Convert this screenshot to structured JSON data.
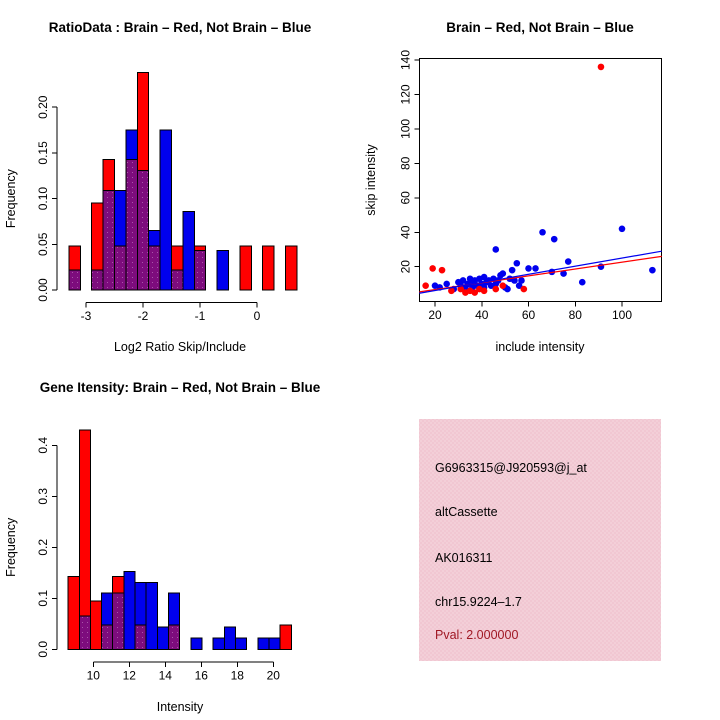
{
  "colors": {
    "red": "#FF0000",
    "blue": "#0000EE",
    "overlap_purple": "#7D0C7D",
    "overlap_dot": "#A855A8",
    "pval_dark_red": "#A01824",
    "info_panel_pink": "#F1C7D2",
    "axis_black": "#000000",
    "background": "#FFFFFF"
  },
  "chart_data": [
    {
      "type": "histogram-overlay",
      "title": "RatioData : Brain – Red, Not Brain – Blue",
      "xlabel": "Log2 Ratio Skip/Include",
      "ylabel": "Frequency",
      "series": {
        "red": "Brain",
        "blue": "Not Brain"
      },
      "x_ticks": [
        -3,
        -2,
        -1,
        0
      ],
      "y_ticks": [
        0,
        0.05,
        0.1,
        0.15,
        0.2
      ],
      "y_tick_labels": [
        "0.00",
        "0.05",
        "0.10",
        "0.15",
        "0.20"
      ],
      "xlim": [
        -3.5,
        0.8
      ],
      "ylim": [
        0,
        0.245
      ],
      "grid": false,
      "bin_width": 0.2,
      "bins": [
        {
          "x0": -3.3,
          "red": 0.048,
          "blue": 0.022
        },
        {
          "x0": -2.9,
          "red": 0.095,
          "blue": 0.022
        },
        {
          "x0": -2.7,
          "red": 0.143,
          "blue": 0.109
        },
        {
          "x0": -2.5,
          "red": 0.048,
          "blue": 0.109
        },
        {
          "x0": -2.3,
          "red": 0.143,
          "blue": 0.175
        },
        {
          "x0": -2.1,
          "red": 0.238,
          "blue": 0.131
        },
        {
          "x0": -1.9,
          "red": 0.048,
          "blue": 0.065
        },
        {
          "x0": -1.7,
          "red": 0.0,
          "blue": 0.175
        },
        {
          "x0": -1.5,
          "red": 0.048,
          "blue": 0.022
        },
        {
          "x0": -1.3,
          "red": 0.0,
          "blue": 0.086
        },
        {
          "x0": -1.1,
          "red": 0.048,
          "blue": 0.043
        },
        {
          "x0": -0.7,
          "red": 0.0,
          "blue": 0.043
        },
        {
          "x0": -0.3,
          "red": 0.048,
          "blue": 0.0
        },
        {
          "x0": 0.1,
          "red": 0.048,
          "blue": 0.0
        },
        {
          "x0": 0.5,
          "red": 0.048,
          "blue": 0.0
        }
      ]
    },
    {
      "type": "scatter",
      "title": "Brain – Red, Not Brain – Blue",
      "xlabel": "include intensity",
      "ylabel": "skip intensity",
      "series": {
        "red": "Brain",
        "blue": "Not Brain"
      },
      "x_ticks": [
        20,
        40,
        60,
        80,
        100
      ],
      "y_ticks": [
        20,
        40,
        60,
        80,
        100,
        120,
        140
      ],
      "xlim": [
        13.3,
        117
      ],
      "ylim": [
        -0.1,
        141
      ],
      "grid": false,
      "red_points": [
        [
          16,
          9
        ],
        [
          19,
          19
        ],
        [
          23,
          18
        ],
        [
          27,
          6
        ],
        [
          31,
          7
        ],
        [
          33,
          5
        ],
        [
          35,
          6
        ],
        [
          37,
          5
        ],
        [
          39,
          7
        ],
        [
          41,
          6
        ],
        [
          46,
          7
        ],
        [
          49,
          9
        ],
        [
          58,
          7
        ],
        [
          91,
          136
        ]
      ],
      "blue_points": [
        [
          20,
          9
        ],
        [
          22,
          8
        ],
        [
          25,
          10
        ],
        [
          28,
          7
        ],
        [
          30,
          11
        ],
        [
          31,
          9
        ],
        [
          32,
          12
        ],
        [
          33,
          8
        ],
        [
          34,
          10
        ],
        [
          35,
          13
        ],
        [
          36,
          8
        ],
        [
          36,
          11
        ],
        [
          37,
          12
        ],
        [
          38,
          9
        ],
        [
          39,
          13
        ],
        [
          40,
          10
        ],
        [
          41,
          8
        ],
        [
          41,
          14
        ],
        [
          42,
          11
        ],
        [
          43,
          12
        ],
        [
          44,
          9
        ],
        [
          45,
          13
        ],
        [
          46,
          10
        ],
        [
          46,
          30
        ],
        [
          47,
          12
        ],
        [
          48,
          15
        ],
        [
          49,
          16
        ],
        [
          50,
          8
        ],
        [
          51,
          7
        ],
        [
          52,
          13
        ],
        [
          53,
          18
        ],
        [
          54,
          12
        ],
        [
          55,
          22
        ],
        [
          56,
          9
        ],
        [
          57,
          12
        ],
        [
          60,
          19
        ],
        [
          63,
          19
        ],
        [
          66,
          40
        ],
        [
          70,
          17
        ],
        [
          71,
          36
        ],
        [
          75,
          16
        ],
        [
          77,
          23
        ],
        [
          83,
          11
        ],
        [
          91,
          20
        ],
        [
          100,
          42
        ],
        [
          113,
          18
        ]
      ],
      "red_line": {
        "x1": 13.3,
        "y1": 5.4,
        "x2": 117,
        "y2": 26.0
      },
      "blue_line": {
        "x1": 13.3,
        "y1": 4.6,
        "x2": 117,
        "y2": 29.0
      }
    },
    {
      "type": "histogram-overlay",
      "title": "Gene Itensity: Brain – Red, Not Brain – Blue",
      "xlabel": "Intensity",
      "ylabel": "Frequency",
      "series": {
        "red": "Brain",
        "blue": "Not Brain"
      },
      "x_ticks": [
        10,
        12,
        14,
        16,
        18,
        20
      ],
      "y_ticks": [
        0,
        0.1,
        0.2,
        0.3,
        0.4
      ],
      "y_tick_labels": [
        "0.0",
        "0.1",
        "0.2",
        "0.3",
        "0.4"
      ],
      "xlim": [
        8.4,
        21.2
      ],
      "ylim": [
        0,
        0.45
      ],
      "grid": false,
      "bin_width": 0.62,
      "bins": [
        {
          "x0": 8.6,
          "red": 0.143,
          "blue": 0.0
        },
        {
          "x0": 9.22,
          "red": 0.43,
          "blue": 0.065
        },
        {
          "x0": 9.84,
          "red": 0.095,
          "blue": 0.0
        },
        {
          "x0": 10.46,
          "red": 0.048,
          "blue": 0.11
        },
        {
          "x0": 11.08,
          "red": 0.143,
          "blue": 0.11
        },
        {
          "x0": 11.7,
          "red": 0.0,
          "blue": 0.153
        },
        {
          "x0": 12.32,
          "red": 0.048,
          "blue": 0.131
        },
        {
          "x0": 12.94,
          "red": 0.0,
          "blue": 0.131
        },
        {
          "x0": 13.56,
          "red": 0.0,
          "blue": 0.044
        },
        {
          "x0": 14.18,
          "red": 0.048,
          "blue": 0.11
        },
        {
          "x0": 15.42,
          "red": 0.0,
          "blue": 0.022
        },
        {
          "x0": 16.66,
          "red": 0.0,
          "blue": 0.022
        },
        {
          "x0": 17.28,
          "red": 0.0,
          "blue": 0.044
        },
        {
          "x0": 17.9,
          "red": 0.0,
          "blue": 0.022
        },
        {
          "x0": 19.14,
          "red": 0.0,
          "blue": 0.022
        },
        {
          "x0": 19.76,
          "red": 0.0,
          "blue": 0.022
        },
        {
          "x0": 20.38,
          "red": 0.048,
          "blue": 0.0
        }
      ]
    },
    {
      "type": "infobox",
      "lines": [
        {
          "label": "probe-id",
          "text": "G6963315@J920593@j_at"
        },
        {
          "label": "splice-type",
          "text": "altCassette"
        },
        {
          "label": "accession",
          "text": "AK016311"
        },
        {
          "label": "locus",
          "text": "chr15.9224–1.7"
        },
        {
          "label": "pval",
          "text": "Pval: 2.000000"
        }
      ]
    }
  ]
}
